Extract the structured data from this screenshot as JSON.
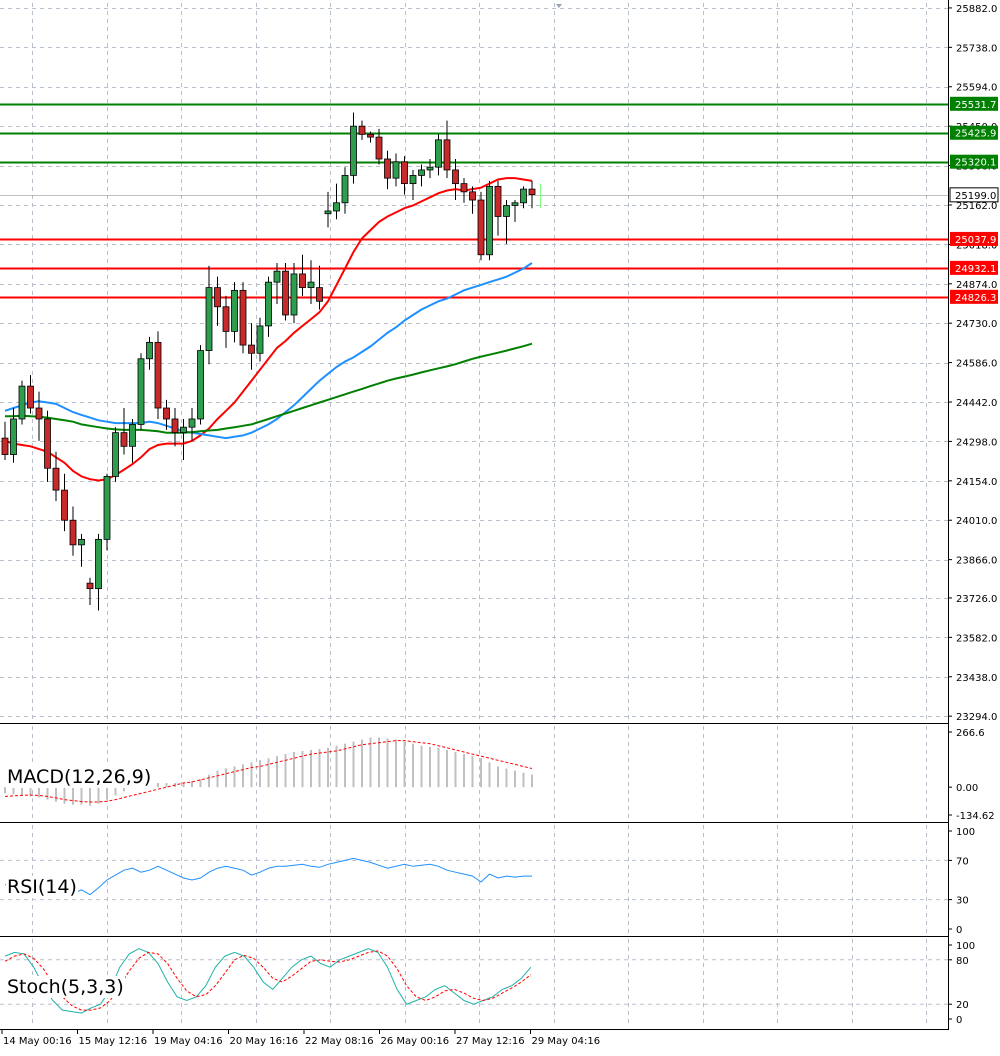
{
  "chart_data": [
    {
      "type": "candlestick",
      "title": "",
      "y_ticks": [
        "25882.0",
        "25738.0",
        "25594.0",
        "25450.0",
        "25306.0",
        "25162.0",
        "25018.0",
        "24874.0",
        "24730.0",
        "24586.0",
        "24442.0",
        "24298.0",
        "24154.0",
        "24010.0",
        "23866.0",
        "23726.0",
        "23582.0",
        "23438.0",
        "23294.0"
      ],
      "ylim": [
        23280,
        25900
      ],
      "grid": true,
      "candles": [
        [
          24310,
          24370,
          24230,
          24250
        ],
        [
          24250,
          24420,
          24220,
          24380
        ],
        [
          24380,
          24520,
          24360,
          24500
        ],
        [
          24500,
          24540,
          24400,
          24420
        ],
        [
          24420,
          24480,
          24300,
          24380
        ],
        [
          24380,
          24410,
          24150,
          24200
        ],
        [
          24200,
          24260,
          24080,
          24120
        ],
        [
          24120,
          24180,
          23970,
          24010
        ],
        [
          24010,
          24060,
          23880,
          23920
        ],
        [
          23920,
          23960,
          23840,
          23940
        ],
        [
          23780,
          23800,
          23700,
          23760
        ],
        [
          23760,
          23960,
          23680,
          23940
        ],
        [
          23940,
          24180,
          23900,
          24170
        ],
        [
          24170,
          24350,
          24150,
          24330
        ],
        [
          24330,
          24420,
          24250,
          24280
        ],
        [
          24280,
          24380,
          24220,
          24360
        ],
        [
          24360,
          24620,
          24340,
          24600
        ],
        [
          24600,
          24680,
          24560,
          24660
        ],
        [
          24660,
          24700,
          24380,
          24420
        ],
        [
          24420,
          24450,
          24340,
          24380
        ],
        [
          24380,
          24420,
          24280,
          24330
        ],
        [
          24330,
          24380,
          24230,
          24350
        ],
        [
          24350,
          24420,
          24300,
          24380
        ],
        [
          24380,
          24650,
          24360,
          24630
        ],
        [
          24630,
          24940,
          24580,
          24860
        ],
        [
          24860,
          24900,
          24720,
          24790
        ],
        [
          24790,
          24830,
          24640,
          24700
        ],
        [
          24700,
          24880,
          24660,
          24850
        ],
        [
          24850,
          24880,
          24620,
          24650
        ],
        [
          24650,
          24730,
          24560,
          24620
        ],
        [
          24620,
          24750,
          24590,
          24720
        ],
        [
          24720,
          24900,
          24680,
          24880
        ],
        [
          24880,
          24950,
          24800,
          24920
        ],
        [
          24920,
          24950,
          24740,
          24760
        ],
        [
          24760,
          24950,
          24730,
          24910
        ],
        [
          24910,
          24980,
          24830,
          24860
        ],
        [
          24860,
          24960,
          24800,
          24880
        ],
        [
          24860,
          24940,
          24780,
          24810
        ],
        [
          25130,
          25210,
          25080,
          25140
        ],
        [
          25140,
          25240,
          25110,
          25170
        ],
        [
          25170,
          25300,
          25130,
          25270
        ],
        [
          25270,
          25500,
          25240,
          25450
        ],
        [
          25450,
          25470,
          25400,
          25420
        ],
        [
          25420,
          25430,
          25390,
          25410
        ],
        [
          25410,
          25440,
          25310,
          25330
        ],
        [
          25330,
          25360,
          25220,
          25260
        ],
        [
          25260,
          25350,
          25230,
          25320
        ],
        [
          25320,
          25340,
          25200,
          25240
        ],
        [
          25240,
          25290,
          25180,
          25270
        ],
        [
          25270,
          25310,
          25230,
          25290
        ],
        [
          25290,
          25330,
          25260,
          25300
        ],
        [
          25300,
          25420,
          25270,
          25400
        ],
        [
          25400,
          25470,
          25260,
          25290
        ],
        [
          25290,
          25330,
          25180,
          25240
        ],
        [
          25240,
          25260,
          25170,
          25210
        ],
        [
          25210,
          25230,
          25130,
          25180
        ],
        [
          25180,
          25210,
          24960,
          24980
        ],
        [
          24980,
          25250,
          24960,
          25230
        ],
        [
          25230,
          25250,
          25050,
          25120
        ],
        [
          25120,
          25180,
          25020,
          25160
        ],
        [
          25160,
          25180,
          25100,
          25170
        ],
        [
          25170,
          25230,
          25150,
          25220
        ],
        [
          25220,
          25250,
          25150,
          25200
        ]
      ],
      "series": [
        {
          "type": "line",
          "color": "#ff0000",
          "values": [
            24300,
            24290,
            24285,
            24280,
            24270,
            24260,
            24240,
            24220,
            24190,
            24170,
            24160,
            24155,
            24160,
            24175,
            24195,
            24215,
            24240,
            24270,
            24285,
            24290,
            24290,
            24290,
            24300,
            24320,
            24345,
            24380,
            24410,
            24440,
            24480,
            24520,
            24560,
            24600,
            24640,
            24665,
            24695,
            24720,
            24745,
            24770,
            24810,
            24870,
            24930,
            24990,
            25040,
            25070,
            25100,
            25120,
            25135,
            25150,
            25160,
            25175,
            25190,
            25205,
            25215,
            25220,
            25215,
            25220,
            25225,
            25240,
            25255,
            25260,
            25260,
            25255,
            25250
          ]
        },
        {
          "type": "line",
          "color": "#1e90ff",
          "values": [
            24410,
            24420,
            24430,
            24440,
            24445,
            24440,
            24435,
            24420,
            24405,
            24395,
            24385,
            24375,
            24370,
            24365,
            24365,
            24365,
            24365,
            24370,
            24365,
            24355,
            24345,
            24335,
            24330,
            24325,
            24320,
            24315,
            24310,
            24315,
            24320,
            24330,
            24345,
            24360,
            24380,
            24405,
            24430,
            24460,
            24490,
            24520,
            24545,
            24570,
            24590,
            24605,
            24625,
            24645,
            24670,
            24695,
            24715,
            24740,
            24760,
            24780,
            24795,
            24810,
            24820,
            24835,
            24850,
            24860,
            24870,
            24880,
            24890,
            24900,
            24915,
            24930,
            24950
          ]
        },
        {
          "type": "line",
          "color": "#008000",
          "values": [
            24390,
            24390,
            24392,
            24390,
            24388,
            24385,
            24380,
            24375,
            24370,
            24360,
            24355,
            24350,
            24345,
            24342,
            24340,
            24340,
            24340,
            24338,
            24335,
            24330,
            24330,
            24330,
            24332,
            24335,
            24338,
            24340,
            24345,
            24350,
            24355,
            24360,
            24370,
            24380,
            24390,
            24400,
            24410,
            24420,
            24430,
            24440,
            24450,
            24460,
            24470,
            24480,
            24490,
            24500,
            24510,
            24520,
            24528,
            24535,
            24542,
            24550,
            24558,
            24565,
            24572,
            24580,
            24590,
            24600,
            24608,
            24615,
            24622,
            24630,
            24638,
            24646,
            24655
          ]
        }
      ],
      "level_lines": [
        {
          "value": 25531.7,
          "label": "25531.7",
          "color": "#008000"
        },
        {
          "value": 25425.9,
          "label": "25425.9",
          "color": "#008000"
        },
        {
          "value": 25320.1,
          "label": "25320.1",
          "color": "#008000"
        },
        {
          "value": 25199.0,
          "label": "25199.0",
          "color": "#808080"
        },
        {
          "value": 25037.9,
          "label": "25037.9",
          "color": "#ff0000"
        },
        {
          "value": 24932.1,
          "label": "24932.1",
          "color": "#ff0000"
        },
        {
          "value": 24826.3,
          "label": "24826.3",
          "color": "#ff0000"
        }
      ],
      "x_tick_labels": [
        "14 May 00:16",
        "15 May 12:16",
        "19 May 04:16",
        "20 May 16:16",
        "22 May 08:16",
        "26 May 00:16",
        "27 May 12:16",
        "29 May 04:16"
      ]
    },
    {
      "type": "bar",
      "title": "MACD(12,26,9)",
      "y_ticks": [
        "266.6",
        "0.00",
        "-134.62"
      ],
      "ylim": [
        -134.62,
        266.6
      ],
      "histogram": [
        -30,
        -35,
        -40,
        -45,
        -50,
        -60,
        -70,
        -80,
        -85,
        -85,
        -90,
        -80,
        -60,
        -40,
        -20,
        0,
        10,
        20,
        20,
        20,
        20,
        20,
        30,
        40,
        60,
        80,
        90,
        100,
        110,
        120,
        130,
        140,
        150,
        160,
        170,
        175,
        180,
        185,
        190,
        200,
        210,
        220,
        230,
        240,
        240,
        235,
        230,
        220,
        210,
        200,
        195,
        190,
        180,
        170,
        160,
        150,
        140,
        120,
        100,
        90,
        80,
        70,
        60
      ],
      "signal": [
        -45,
        -42,
        -40,
        -38,
        -40,
        -45,
        -52,
        -60,
        -65,
        -70,
        -72,
        -72,
        -68,
        -60,
        -50,
        -40,
        -30,
        -20,
        -10,
        0,
        10,
        20,
        25,
        35,
        45,
        55,
        65,
        75,
        85,
        95,
        100,
        110,
        120,
        130,
        140,
        150,
        160,
        165,
        170,
        175,
        185,
        195,
        205,
        210,
        215,
        220,
        225,
        225,
        220,
        215,
        210,
        200,
        190,
        180,
        170,
        160,
        150,
        140,
        130,
        120,
        110,
        100,
        90
      ]
    },
    {
      "type": "line",
      "title": "RSI(14)",
      "y_ticks": [
        "100",
        "70",
        "30",
        "0"
      ],
      "ylim": [
        0,
        100
      ],
      "levels": [
        70,
        30
      ],
      "values": [
        45,
        48,
        50,
        47,
        44,
        42,
        40,
        38,
        36,
        40,
        35,
        42,
        50,
        55,
        60,
        62,
        58,
        60,
        64,
        60,
        56,
        52,
        50,
        52,
        58,
        62,
        64,
        62,
        60,
        55,
        58,
        62,
        64,
        64,
        65,
        66,
        64,
        63,
        66,
        68,
        70,
        72,
        70,
        68,
        65,
        62,
        64,
        66,
        64,
        65,
        66,
        64,
        60,
        58,
        56,
        54,
        48,
        56,
        52,
        54,
        53,
        54,
        54
      ]
    },
    {
      "type": "line",
      "title": "Stoch(5,3,3)",
      "y_ticks": [
        "100",
        "80",
        "20",
        "0"
      ],
      "ylim": [
        0,
        100
      ],
      "levels": [
        80,
        20
      ],
      "k": [
        85,
        90,
        88,
        70,
        45,
        25,
        12,
        10,
        8,
        15,
        20,
        40,
        70,
        88,
        95,
        90,
        75,
        50,
        30,
        25,
        30,
        45,
        70,
        85,
        90,
        85,
        70,
        50,
        40,
        55,
        70,
        80,
        85,
        75,
        70,
        80,
        85,
        90,
        95,
        90,
        70,
        40,
        20,
        25,
        30,
        40,
        45,
        35,
        25,
        20,
        25,
        30,
        40,
        45,
        55,
        70
      ],
      "d": [
        78,
        85,
        88,
        82,
        68,
        48,
        30,
        18,
        12,
        12,
        15,
        25,
        45,
        65,
        82,
        90,
        88,
        75,
        55,
        38,
        30,
        33,
        45,
        62,
        80,
        86,
        82,
        70,
        55,
        50,
        58,
        68,
        78,
        80,
        78,
        77,
        80,
        85,
        90,
        92,
        85,
        68,
        45,
        30,
        25,
        30,
        38,
        40,
        35,
        28,
        25,
        28,
        35,
        42,
        50,
        60
      ]
    }
  ]
}
